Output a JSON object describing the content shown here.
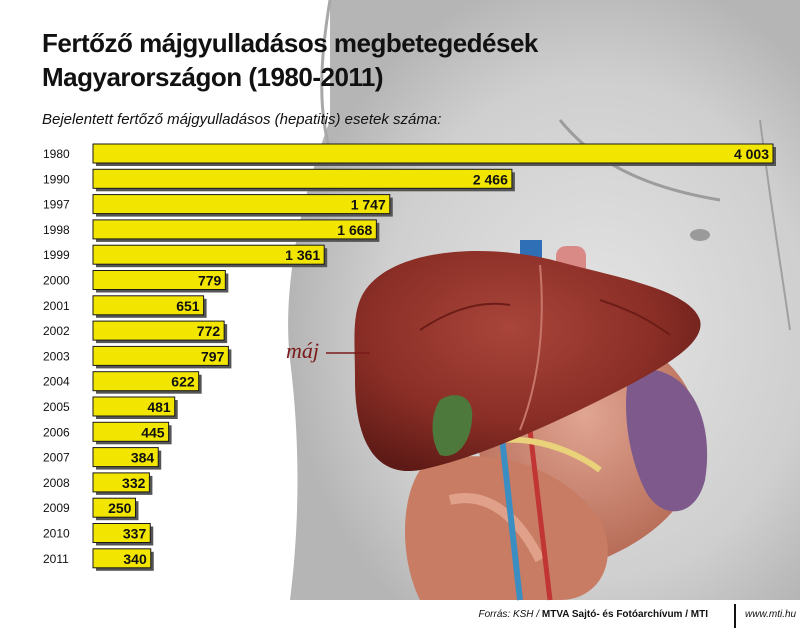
{
  "header": {
    "title_line1": "Fertőző májgyulladásos megbetegedések",
    "title_line2": "Magyarországon (1980-2011)"
  },
  "illustration": {
    "liver_label": "máj"
  },
  "footer": {
    "source_prefix": "Forrás: KSH /",
    "source_agency": "MTVA Sajtó- és Fotóarchívum / MTI",
    "site": "www.mti.hu"
  },
  "colors": {
    "bar_fill": "#f2e600",
    "bar_stroke": "#1a1a1a",
    "bar_shadow": "#555555"
  },
  "chart_data": {
    "type": "bar",
    "orientation": "horizontal",
    "title": "Fertőző májgyulladásos megbetegedések Magyarországon (1980-2011)",
    "subtitle": "Bejelentett fertőző májgyulladásos (hepatitis) esetek száma:",
    "xlabel": "",
    "ylabel": "",
    "grid": false,
    "legend": "none",
    "xlim": [
      0,
      4003
    ],
    "categories": [
      "1980",
      "1990",
      "1997",
      "1998",
      "1999",
      "2000",
      "2001",
      "2002",
      "2003",
      "2004",
      "2005",
      "2006",
      "2007",
      "2008",
      "2009",
      "2010",
      "2011"
    ],
    "values": [
      4003,
      2466,
      1747,
      1668,
      1361,
      779,
      651,
      772,
      797,
      622,
      481,
      445,
      384,
      332,
      250,
      337,
      340
    ],
    "value_labels": [
      "4 003",
      "2 466",
      "1 747",
      "1 668",
      "1 361",
      "779",
      "651",
      "772",
      "797",
      "622",
      "481",
      "445",
      "384",
      "332",
      "250",
      "337",
      "340"
    ]
  }
}
